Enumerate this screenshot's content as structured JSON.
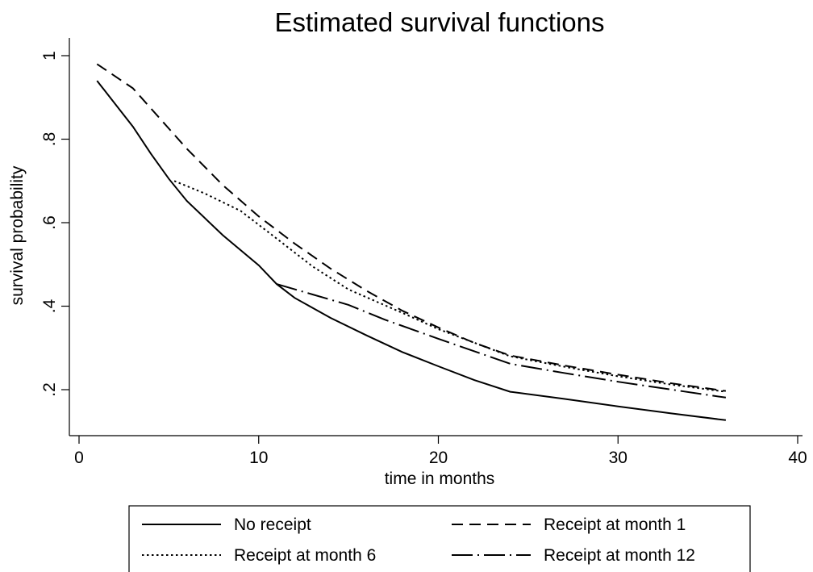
{
  "chart_data": {
    "type": "line",
    "title": "Estimated survival functions",
    "xlabel": "time in months",
    "ylabel": "survival probability",
    "xlim": [
      0,
      40
    ],
    "ylim": [
      0.1,
      1.05
    ],
    "x_ticks": [
      0,
      10,
      20,
      30,
      40
    ],
    "x_tick_labels": [
      "0",
      "10",
      "20",
      "30",
      "40"
    ],
    "y_ticks": [
      0.2,
      0.4,
      0.6,
      0.8,
      1.0
    ],
    "y_tick_labels": [
      ".2",
      ".4",
      ".6",
      ".8",
      "1"
    ],
    "grid": false,
    "legend_position": "bottom",
    "series": [
      {
        "name": "No receipt",
        "dash": "solid",
        "points": [
          [
            1,
            0.94
          ],
          [
            3,
            0.83
          ],
          [
            4,
            0.765
          ],
          [
            5,
            0.705
          ],
          [
            6,
            0.652
          ],
          [
            8,
            0.57
          ],
          [
            10,
            0.498
          ],
          [
            11,
            0.453
          ],
          [
            12,
            0.42
          ],
          [
            14,
            0.372
          ],
          [
            16,
            0.33
          ],
          [
            18,
            0.29
          ],
          [
            20,
            0.256
          ],
          [
            22,
            0.223
          ],
          [
            24,
            0.195
          ],
          [
            27,
            0.178
          ],
          [
            30,
            0.16
          ],
          [
            33,
            0.143
          ],
          [
            36,
            0.127
          ]
        ]
      },
      {
        "name": "Receipt at month 1",
        "dash": "dashed",
        "points": [
          [
            1,
            0.98
          ],
          [
            3,
            0.922
          ],
          [
            6,
            0.777
          ],
          [
            8,
            0.69
          ],
          [
            10,
            0.615
          ],
          [
            12,
            0.55
          ],
          [
            14,
            0.49
          ],
          [
            16,
            0.437
          ],
          [
            18,
            0.389
          ],
          [
            20,
            0.349
          ],
          [
            22,
            0.312
          ],
          [
            24,
            0.282
          ],
          [
            27,
            0.258
          ],
          [
            30,
            0.236
          ],
          [
            33,
            0.215
          ],
          [
            36,
            0.197
          ]
        ]
      },
      {
        "name": "Receipt at month 6",
        "dash": "dotted",
        "points": [
          [
            5.3,
            0.7
          ],
          [
            7,
            0.67
          ],
          [
            9,
            0.628
          ],
          [
            11,
            0.562
          ],
          [
            13,
            0.495
          ],
          [
            15,
            0.44
          ],
          [
            18,
            0.384
          ],
          [
            20,
            0.345
          ],
          [
            24,
            0.28
          ],
          [
            27,
            0.255
          ],
          [
            30,
            0.232
          ],
          [
            33,
            0.212
          ],
          [
            36,
            0.195
          ]
        ]
      },
      {
        "name": "Receipt at month 12",
        "dash": "longdash-dot",
        "points": [
          [
            11,
            0.453
          ],
          [
            13,
            0.428
          ],
          [
            15,
            0.403
          ],
          [
            17,
            0.368
          ],
          [
            20,
            0.322
          ],
          [
            24,
            0.262
          ],
          [
            27,
            0.24
          ],
          [
            30,
            0.219
          ],
          [
            33,
            0.2
          ],
          [
            36,
            0.181
          ]
        ]
      }
    ]
  }
}
